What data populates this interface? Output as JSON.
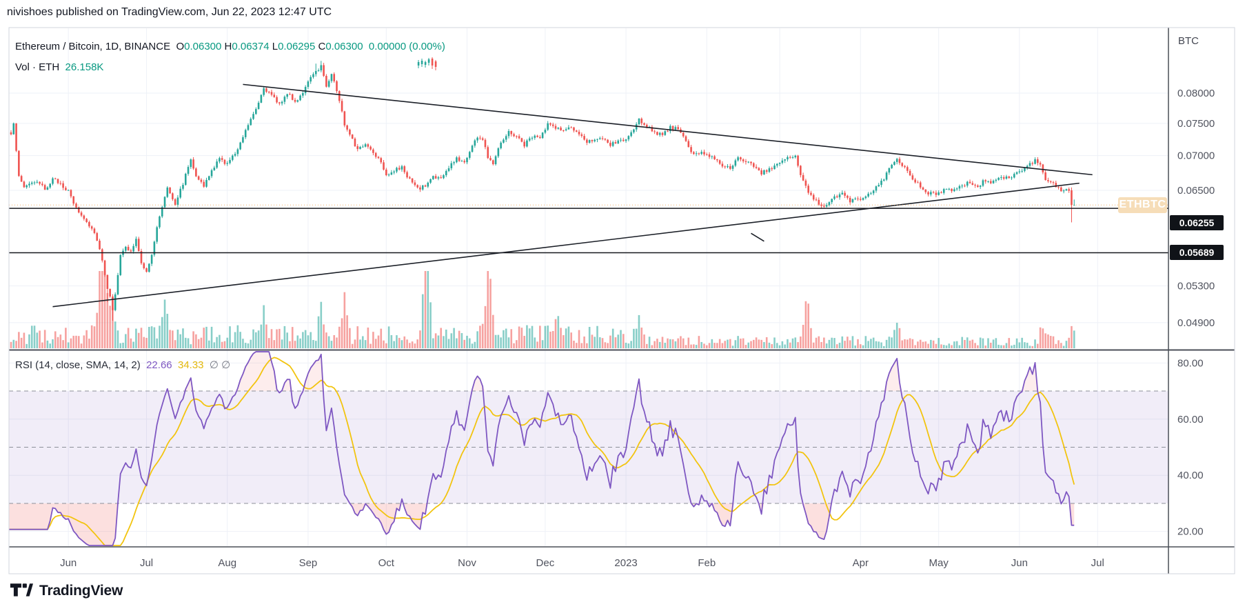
{
  "header": {
    "published_line": "nivishoes published on TradingView.com, Jun 22, 2023 12:47 UTC"
  },
  "legend": {
    "symbol": "Ethereum / Bitcoin,",
    "interval": "1D,",
    "exchange": "BINANCE",
    "ohlc": [
      {
        "k": "O",
        "v": "0.06300"
      },
      {
        "k": "H",
        "v": "0.06374"
      },
      {
        "k": "L",
        "v": "0.06295"
      },
      {
        "k": "C",
        "v": "0.06300"
      }
    ],
    "change": "0.00000",
    "change_pct": "(0.00%)",
    "volume_label": "Vol · ETH",
    "volume_value": "26.158K"
  },
  "rsi_legend": {
    "title": "RSI (14, close, SMA, 14, 2)",
    "rsi_value": "22.66",
    "sma_value": "34.33",
    "empty1": "∅",
    "empty2": "∅"
  },
  "price_axis": {
    "unit": "BTC",
    "ticks": [
      "0.08000",
      "0.07500",
      "0.07000",
      "0.06500",
      "0.05300",
      "0.04900"
    ],
    "tick_prices": [
      0.08,
      0.075,
      0.07,
      0.065,
      0.053,
      0.049
    ],
    "line_badges": [
      {
        "text": "0.06255",
        "price": 0.06255
      },
      {
        "text": "0.05689",
        "price": 0.05689
      }
    ],
    "symbol_badge": "ETHBTC",
    "current_price": 0.063
  },
  "rsi_axis": {
    "ticks": [
      "80.00",
      "60.00",
      "40.00",
      "20.00"
    ],
    "tick_values": [
      80,
      60,
      40,
      20
    ],
    "overbought": 70,
    "middle": 50,
    "oversold": 30
  },
  "time_axis": {
    "labels": [
      {
        "text": "Jun",
        "day": 22
      },
      {
        "text": "Jul",
        "day": 52
      },
      {
        "text": "Aug",
        "day": 83
      },
      {
        "text": "Sep",
        "day": 114
      },
      {
        "text": "Oct",
        "day": 144
      },
      {
        "text": "Nov",
        "day": 175
      },
      {
        "text": "Dec",
        "day": 205
      },
      {
        "text": "2023",
        "day": 236
      },
      {
        "text": "Feb",
        "day": 267
      },
      {
        "text": "Apr",
        "day": 326
      },
      {
        "text": "May",
        "day": 356
      },
      {
        "text": "Jun",
        "day": 387
      },
      {
        "text": "Jul",
        "day": 417
      }
    ],
    "gridline_days": [
      22,
      52,
      83,
      114,
      144,
      175,
      205,
      236,
      267,
      295,
      326,
      356,
      387,
      417
    ]
  },
  "footer": {
    "brand": "TradingView"
  },
  "chart_data": {
    "type": "candlestick",
    "title": "Ethereum / Bitcoin, 1D, BINANCE with volume and RSI(14) + SMA(14)",
    "start_date": "2022-05-10",
    "end_date": "2023-06-22",
    "days": 409,
    "price_range_shown": [
      0.049,
      0.08
    ],
    "rsi_last": 22.66,
    "rsi_sma_last": 34.33,
    "price_anchors": [
      [
        0,
        0.073
      ],
      [
        1,
        0.0752
      ],
      [
        3,
        0.0668
      ],
      [
        5,
        0.0655
      ],
      [
        8,
        0.0662
      ],
      [
        11,
        0.0658
      ],
      [
        13,
        0.0652
      ],
      [
        16,
        0.0665
      ],
      [
        19,
        0.066
      ],
      [
        22,
        0.0648
      ],
      [
        25,
        0.0625
      ],
      [
        28,
        0.0612
      ],
      [
        31,
        0.06
      ],
      [
        33,
        0.0586
      ],
      [
        35,
        0.056
      ],
      [
        37,
        0.0528
      ],
      [
        39,
        0.0505
      ],
      [
        40,
        0.0522
      ],
      [
        42,
        0.0565
      ],
      [
        44,
        0.0575
      ],
      [
        46,
        0.057
      ],
      [
        48,
        0.0585
      ],
      [
        50,
        0.0555
      ],
      [
        52,
        0.0548
      ],
      [
        54,
        0.0565
      ],
      [
        56,
        0.06
      ],
      [
        58,
        0.0628
      ],
      [
        60,
        0.0655
      ],
      [
        63,
        0.0632
      ],
      [
        66,
        0.066
      ],
      [
        69,
        0.0695
      ],
      [
        71,
        0.0672
      ],
      [
        74,
        0.0655
      ],
      [
        77,
        0.0678
      ],
      [
        80,
        0.0695
      ],
      [
        83,
        0.0688
      ],
      [
        86,
        0.0703
      ],
      [
        89,
        0.073
      ],
      [
        92,
        0.0758
      ],
      [
        95,
        0.0785
      ],
      [
        97,
        0.081
      ],
      [
        100,
        0.0795
      ],
      [
        103,
        0.0782
      ],
      [
        106,
        0.08
      ],
      [
        109,
        0.0785
      ],
      [
        112,
        0.0802
      ],
      [
        114,
        0.0818
      ],
      [
        117,
        0.0838
      ],
      [
        119,
        0.0848
      ],
      [
        121,
        0.0812
      ],
      [
        123,
        0.0835
      ],
      [
        126,
        0.0788
      ],
      [
        128,
        0.0748
      ],
      [
        130,
        0.0735
      ],
      [
        133,
        0.0708
      ],
      [
        136,
        0.0718
      ],
      [
        139,
        0.0705
      ],
      [
        142,
        0.0692
      ],
      [
        144,
        0.0672
      ],
      [
        147,
        0.0678
      ],
      [
        150,
        0.0682
      ],
      [
        153,
        0.0665
      ],
      [
        156,
        0.0652
      ],
      [
        159,
        0.0656
      ],
      [
        162,
        0.067
      ],
      [
        165,
        0.0666
      ],
      [
        168,
        0.0682
      ],
      [
        171,
        0.0696
      ],
      [
        174,
        0.069
      ],
      [
        177,
        0.0715
      ],
      [
        179,
        0.0729
      ],
      [
        181,
        0.0724
      ],
      [
        183,
        0.0698
      ],
      [
        185,
        0.069
      ],
      [
        188,
        0.0722
      ],
      [
        191,
        0.0736
      ],
      [
        194,
        0.073
      ],
      [
        197,
        0.0716
      ],
      [
        200,
        0.073
      ],
      [
        203,
        0.0726
      ],
      [
        206,
        0.0748
      ],
      [
        209,
        0.0744
      ],
      [
        212,
        0.0738
      ],
      [
        215,
        0.0744
      ],
      [
        218,
        0.073
      ],
      [
        221,
        0.0722
      ],
      [
        224,
        0.0726
      ],
      [
        227,
        0.0724
      ],
      [
        230,
        0.0716
      ],
      [
        233,
        0.0722
      ],
      [
        236,
        0.0724
      ],
      [
        239,
        0.074
      ],
      [
        241,
        0.0755
      ],
      [
        244,
        0.0746
      ],
      [
        247,
        0.0736
      ],
      [
        250,
        0.073
      ],
      [
        253,
        0.0744
      ],
      [
        256,
        0.074
      ],
      [
        259,
        0.0721
      ],
      [
        262,
        0.07
      ],
      [
        265,
        0.0706
      ],
      [
        267,
        0.0702
      ],
      [
        270,
        0.0696
      ],
      [
        273,
        0.0686
      ],
      [
        276,
        0.0681
      ],
      [
        279,
        0.0695
      ],
      [
        282,
        0.069
      ],
      [
        285,
        0.0686
      ],
      [
        288,
        0.0675
      ],
      [
        291,
        0.068
      ],
      [
        295,
        0.069
      ],
      [
        298,
        0.0696
      ],
      [
        301,
        0.07
      ],
      [
        303,
        0.0672
      ],
      [
        305,
        0.0655
      ],
      [
        307,
        0.0642
      ],
      [
        310,
        0.0632
      ],
      [
        313,
        0.0629
      ],
      [
        316,
        0.064
      ],
      [
        319,
        0.0646
      ],
      [
        322,
        0.0635
      ],
      [
        326,
        0.0638
      ],
      [
        329,
        0.0645
      ],
      [
        332,
        0.0655
      ],
      [
        335,
        0.0666
      ],
      [
        337,
        0.068
      ],
      [
        340,
        0.0694
      ],
      [
        343,
        0.0682
      ],
      [
        346,
        0.0667
      ],
      [
        349,
        0.0655
      ],
      [
        352,
        0.0646
      ],
      [
        356,
        0.0645
      ],
      [
        359,
        0.0654
      ],
      [
        362,
        0.065
      ],
      [
        365,
        0.0656
      ],
      [
        368,
        0.0661
      ],
      [
        371,
        0.0655
      ],
      [
        374,
        0.0665
      ],
      [
        377,
        0.0661
      ],
      [
        380,
        0.067
      ],
      [
        383,
        0.0666
      ],
      [
        387,
        0.0676
      ],
      [
        390,
        0.0684
      ],
      [
        393,
        0.0692
      ],
      [
        395,
        0.0689
      ],
      [
        397,
        0.0666
      ],
      [
        399,
        0.066
      ],
      [
        401,
        0.0656
      ],
      [
        403,
        0.0648
      ],
      [
        405,
        0.0652
      ],
      [
        406,
        0.0648
      ],
      [
        407,
        0.063
      ],
      [
        408,
        0.063
      ]
    ],
    "volume_spikes": [
      [
        34,
        55
      ],
      [
        35,
        70
      ],
      [
        36,
        62
      ],
      [
        38,
        48
      ],
      [
        59,
        40
      ],
      [
        97,
        42
      ],
      [
        119,
        40
      ],
      [
        128,
        52
      ],
      [
        159,
        100
      ],
      [
        160,
        58
      ],
      [
        183,
        78
      ],
      [
        184,
        50
      ],
      [
        210,
        38
      ],
      [
        241,
        32
      ],
      [
        305,
        38
      ],
      [
        306,
        30
      ],
      [
        340,
        28
      ],
      [
        396,
        24
      ],
      [
        407,
        16
      ]
    ],
    "special_candles": {
      "low_overrides": [
        [
          37,
          0.0512
        ],
        [
          39,
          0.0492
        ]
      ],
      "high_overrides": [
        [
          117,
          0.0852
        ],
        [
          119,
          0.0857
        ]
      ],
      "penultimate": {
        "o": 0.065,
        "h": 0.0654,
        "l": 0.0607,
        "c": 0.063
      },
      "last": {
        "o": 0.063,
        "h": 0.06374,
        "l": 0.06295,
        "c": 0.063
      }
    },
    "horizontal_lines": [
      0.06255,
      0.05689
    ],
    "trendlines": [
      {
        "name": "descending-resistance",
        "d1": 89,
        "p1": 0.0815,
        "d2": 415,
        "p2": 0.0672
      },
      {
        "name": "ascending-support",
        "d1": 16,
        "p1": 0.0507,
        "d2": 410,
        "p2": 0.066
      },
      {
        "name": "small-mark",
        "d1": 284,
        "p1": 0.0593,
        "d2": 289,
        "p2": 0.0583
      }
    ],
    "colors": {
      "up": "#26a69a",
      "down": "#ef5350",
      "vol_up": "rgba(38,166,154,0.55)",
      "vol_down": "rgba(239,83,80,0.55)",
      "rsi_line": "#7e57c2",
      "rsi_sma": "#f2c40f",
      "rsi_band": "rgba(126,87,194,0.11)",
      "rsi_oversold_fill": "rgba(239,83,80,0.18)",
      "rsi_overbought_fill": "rgba(239,83,80,0.10)",
      "grid": "#eef1f7",
      "dashed": "#8c8f99",
      "black_line": "#16181e",
      "trend": "#1b1f27",
      "price_line": "#f2a654",
      "separator": "#4a4e57",
      "frame": "#d1d4dc",
      "axis_text": "#50535e"
    }
  }
}
